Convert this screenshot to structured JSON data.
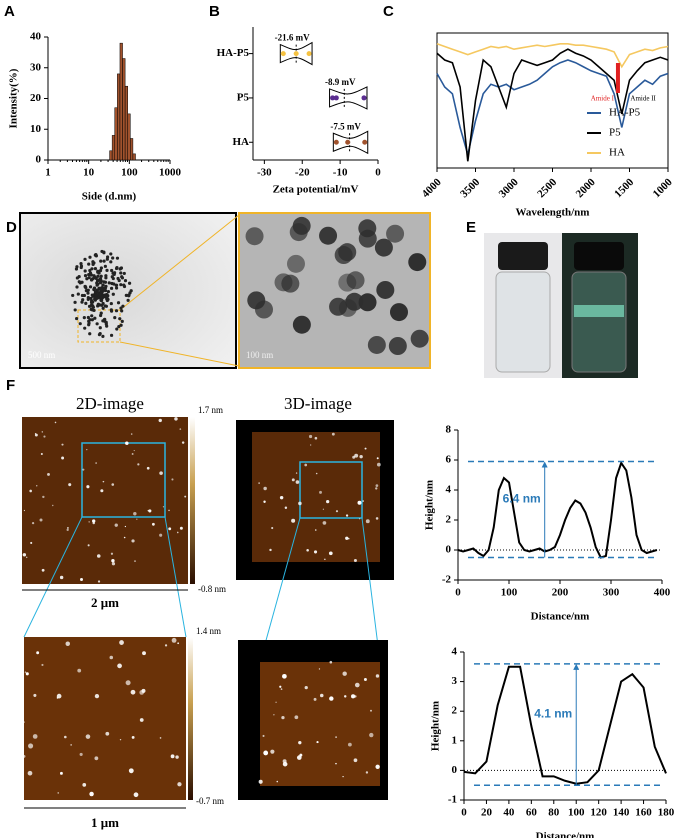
{
  "chart_data": [
    {
      "type": "histogram",
      "panel": "A",
      "xlabel": "Side (d.nm)",
      "ylabel": "Intensity(%)",
      "xlog": true,
      "xlim": [
        1,
        1000
      ],
      "xticks": [
        1,
        10,
        100,
        1000
      ],
      "ylim": [
        0,
        40
      ],
      "yticks": [
        0,
        10,
        20,
        30,
        40
      ],
      "color": "#a0522d",
      "bins": [
        32.7,
        37.8,
        43.8,
        50.7,
        58.8,
        68.1,
        78.8,
        91.3,
        105.7,
        122.4,
        141.8
      ],
      "values": [
        3,
        8,
        17,
        28,
        38,
        33,
        24,
        15,
        7,
        2
      ]
    },
    {
      "type": "violin",
      "panel": "B",
      "xlabel": "Zeta potential/mV",
      "categories": [
        "HA-P5",
        "P5",
        "HA"
      ],
      "values": [
        -21.6,
        -8.9,
        -7.5
      ],
      "value_labels": [
        "-21.6 mV",
        "-8.9 mV",
        "-7.5 mV"
      ],
      "points": [
        [
          -25,
          -21.6,
          -18.2
        ],
        [
          -12,
          -11,
          -3.7
        ],
        [
          -11,
          -8,
          -3.5
        ]
      ],
      "colors": [
        "#f5c242",
        "#5b2d91",
        "#a0522d"
      ],
      "xlim": [
        -33,
        0
      ],
      "xticks": [
        -30,
        -20,
        -10,
        0
      ]
    },
    {
      "type": "line",
      "panel": "C",
      "xlabel": "Wavelength/nm",
      "xlim": [
        4000,
        1000
      ],
      "xticks": [
        4000,
        3500,
        3000,
        2500,
        2000,
        1500,
        1000
      ],
      "ylim": [
        0,
        100
      ],
      "x": [
        4000,
        3900,
        3800,
        3700,
        3600,
        3500,
        3400,
        3300,
        3200,
        3100,
        3000,
        2900,
        2800,
        2700,
        2600,
        2500,
        2400,
        2300,
        2200,
        2100,
        2000,
        1900,
        1800,
        1700,
        1600,
        1500,
        1400,
        1300,
        1200,
        1100,
        1000
      ],
      "series": [
        {
          "name": "HA-P5",
          "color": "#2a5a9a",
          "values": [
            70,
            60,
            55,
            30,
            10,
            35,
            55,
            62,
            60,
            62,
            58,
            60,
            62,
            65,
            70,
            75,
            78,
            80,
            78,
            75,
            72,
            70,
            68,
            55,
            30,
            55,
            60,
            65,
            62,
            68,
            70
          ]
        },
        {
          "name": "P5",
          "color": "#000000",
          "values": [
            85,
            80,
            78,
            60,
            5,
            50,
            80,
            75,
            60,
            45,
            70,
            80,
            78,
            76,
            78,
            80,
            85,
            88,
            85,
            83,
            80,
            75,
            70,
            65,
            40,
            65,
            72,
            78,
            80,
            82,
            80
          ]
        },
        {
          "name": "HA",
          "color": "#f5c860",
          "values": [
            92,
            90,
            88,
            86,
            84,
            86,
            88,
            90,
            89,
            90,
            88,
            89,
            90,
            91,
            90,
            91,
            92,
            92,
            91,
            91,
            90,
            89,
            88,
            86,
            75,
            84,
            86,
            88,
            87,
            89,
            90
          ]
        }
      ],
      "annotations": [
        {
          "text": "Amide I",
          "x": 1650,
          "color": "#e02020"
        },
        {
          "text": "Amide II",
          "x": 1540,
          "color": "#000000"
        }
      ]
    },
    {
      "type": "line",
      "xlabel": "Distance/nm",
      "ylabel": "Height/nm",
      "xlim": [
        0,
        400
      ],
      "xticks": [
        0,
        100,
        200,
        300,
        400
      ],
      "ylim": [
        -2,
        8
      ],
      "yticks": [
        -2,
        0,
        2,
        4,
        6,
        8
      ],
      "x": [
        0,
        10,
        20,
        30,
        40,
        50,
        60,
        70,
        80,
        90,
        100,
        110,
        120,
        130,
        140,
        150,
        160,
        170,
        180,
        190,
        200,
        210,
        220,
        230,
        240,
        250,
        260,
        270,
        280,
        290,
        300,
        310,
        320,
        330,
        340,
        350,
        360,
        370,
        380,
        390
      ],
      "values": [
        0,
        -0.1,
        0,
        0.1,
        -0.2,
        -0.4,
        0,
        1.5,
        4,
        4.8,
        4.5,
        2.5,
        0.5,
        0,
        -0.1,
        0,
        0.1,
        -0.1,
        0,
        0.2,
        1,
        2,
        2.8,
        3.3,
        3.1,
        2.5,
        1.5,
        0.2,
        -0.5,
        -0.4,
        2,
        4.8,
        5.8,
        5.3,
        3.5,
        1,
        0,
        -0.2,
        -0.1,
        0
      ],
      "reference_lines": [
        5.9,
        -0.5
      ],
      "annotation": {
        "text": "6.4 nm",
        "x": 170
      }
    },
    {
      "type": "line",
      "xlabel": "Distance/nm",
      "ylabel": "Height/nm",
      "xlim": [
        0,
        180
      ],
      "xticks": [
        0,
        20,
        40,
        60,
        80,
        100,
        120,
        140,
        160,
        180
      ],
      "ylim": [
        -1,
        4
      ],
      "yticks": [
        -1,
        0,
        1,
        2,
        3,
        4
      ],
      "x": [
        0,
        10,
        20,
        30,
        40,
        50,
        60,
        70,
        80,
        90,
        100,
        110,
        120,
        130,
        140,
        150,
        160,
        170,
        180
      ],
      "values": [
        -0.05,
        -0.1,
        0.3,
        2.2,
        3.5,
        3.5,
        1.5,
        -0.2,
        -0.2,
        -0.35,
        -0.45,
        -0.4,
        0,
        1.5,
        3,
        3.25,
        2.8,
        0.8,
        -0.1
      ],
      "reference_lines": [
        3.6,
        -0.5
      ],
      "annotation": {
        "text": "4.1 nm",
        "x": 100
      }
    }
  ],
  "images": {
    "D": {
      "panel": "D",
      "scale_bars": [
        "500 nm",
        "100 nm"
      ]
    },
    "E": {
      "panel": "E"
    },
    "F": {
      "panel": "F",
      "titles": [
        "2D-image",
        "3D-image"
      ],
      "colorbar_1": [
        "1.7 nm",
        "-0.8 nm"
      ],
      "colorbar_2": [
        "1.4 nm",
        "-0.7 nm"
      ],
      "scales": [
        "2 μm",
        "1 μm"
      ]
    }
  }
}
